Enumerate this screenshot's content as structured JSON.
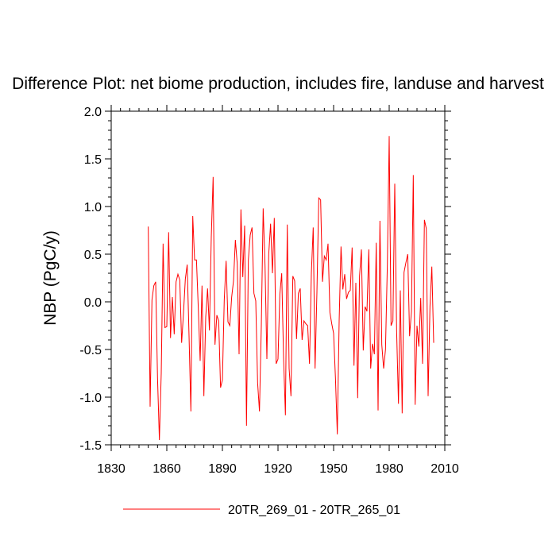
{
  "chart_data": {
    "type": "line",
    "title": "Difference Plot: net biome production, includes fire, landuse and harvest",
    "xlabel": "",
    "ylabel": "NBP  (PgC/y)",
    "xlim": [
      1830,
      2010
    ],
    "ylim": [
      -1.5,
      2.0
    ],
    "xticks": [
      1830,
      1860,
      1890,
      1920,
      1950,
      1980,
      2010
    ],
    "xtick_labels": [
      "1830",
      "1860",
      "1890",
      "1920",
      "1950",
      "1980",
      "2010"
    ],
    "yticks": [
      -1.5,
      -1.0,
      -0.5,
      0.0,
      0.5,
      1.0,
      1.5,
      2.0
    ],
    "ytick_labels": [
      "-1.5",
      "-1.0",
      "-0.5",
      "0.0",
      "0.5",
      "1.0",
      "1.5",
      "2.0"
    ],
    "legend_position": "bottom-center",
    "series": [
      {
        "name": "20TR_269_01 - 20TR_265_01",
        "color": "#ff0000",
        "x_start": 1850,
        "x_step": 1,
        "values": [
          0.79,
          -1.1,
          0.02,
          0.17,
          0.21,
          -0.8,
          -1.45,
          -0.75,
          0.61,
          -0.27,
          -0.26,
          0.73,
          -0.38,
          0.05,
          -0.34,
          0.21,
          0.29,
          0.23,
          -0.43,
          -0.12,
          0.24,
          0.39,
          -0.36,
          -1.15,
          0.9,
          0.44,
          0.44,
          -0.07,
          -0.62,
          0.17,
          -0.99,
          -0.16,
          0.14,
          -0.3,
          0.68,
          1.31,
          -0.45,
          -0.14,
          -0.2,
          -0.9,
          -0.82,
          0.02,
          0.43,
          -0.21,
          -0.25,
          0.05,
          0.22,
          0.65,
          0.4,
          -0.55,
          0.97,
          0.26,
          0.8,
          -1.3,
          0.44,
          0.7,
          0.78,
          0.09,
          0.01,
          -0.85,
          -1.15,
          -0.25,
          0.98,
          0.38,
          -0.6,
          0.5,
          0.82,
          0.3,
          0.88,
          -0.65,
          -0.6,
          0.08,
          0.3,
          -0.58,
          -1.19,
          0.81,
          -0.7,
          -0.99,
          0.27,
          0.22,
          -0.39,
          0.09,
          0.14,
          -0.4,
          -0.2,
          -0.23,
          -0.25,
          -0.65,
          0.3,
          0.78,
          -0.7,
          0.1,
          1.09,
          1.07,
          0.21,
          0.48,
          0.44,
          0.61,
          -0.11,
          -0.23,
          -0.33,
          -0.8,
          -1.39,
          -0.2,
          0.58,
          0.13,
          0.29,
          0.03,
          0.1,
          0.12,
          0.57,
          -0.67,
          0.2,
          -1.01,
          0.27,
          0.55,
          -0.51,
          -0.05,
          -0.1,
          0.55,
          -0.7,
          -0.44,
          -0.55,
          0.62,
          -1.14,
          0.85,
          -0.45,
          -0.7,
          -0.5,
          0.39,
          1.74,
          -0.25,
          -0.2,
          1.24,
          -0.3,
          -1.07,
          0.12,
          -1.17,
          0.31,
          0.41,
          0.5,
          -0.36,
          -0.1,
          1.33,
          -1.08,
          -0.25,
          -0.47,
          0.04,
          -0.65,
          0.86,
          0.77,
          -0.99,
          -0.05,
          0.37,
          -0.43
        ]
      }
    ]
  }
}
